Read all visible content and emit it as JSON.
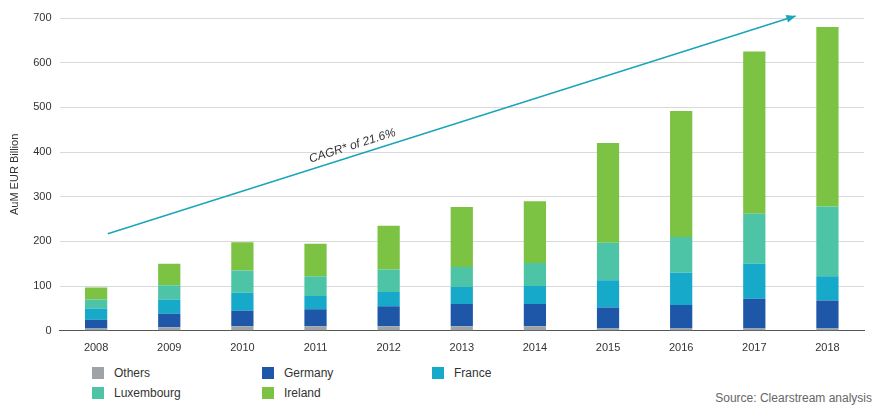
{
  "chart_data": {
    "type": "bar",
    "stacked": true,
    "grid": true,
    "legend": "bottom",
    "y_label": "AuM EUR Billion",
    "annotations": [
      "CAGR* of 21.6%"
    ],
    "source": "Source: Clearstream analysis",
    "categories": [
      "2008",
      "2009",
      "2010",
      "2011",
      "2012",
      "2013",
      "2014",
      "2015",
      "2016",
      "2017",
      "2018"
    ],
    "series": [
      {
        "name": "Others",
        "color": "#9ea3a8",
        "values": [
          5,
          8,
          10,
          10,
          10,
          10,
          10,
          5,
          5,
          5,
          5
        ]
      },
      {
        "name": "Germany",
        "color": "#1f57a8",
        "values": [
          20,
          30,
          35,
          38,
          45,
          50,
          50,
          47,
          53,
          67,
          63
        ]
      },
      {
        "name": "France",
        "color": "#17a9c9",
        "values": [
          25,
          32,
          40,
          30,
          32,
          38,
          40,
          61,
          72,
          78,
          54
        ]
      },
      {
        "name": "Luxembourg",
        "color": "#4dc4a6",
        "values": [
          20,
          32,
          50,
          44,
          50,
          45,
          52,
          84,
          80,
          112,
          156
        ]
      },
      {
        "name": "Ireland",
        "color": "#7cc243",
        "values": [
          27,
          48,
          63,
          73,
          98,
          134,
          138,
          223,
          282,
          363,
          402
        ]
      }
    ],
    "ylim": [
      0,
      700
    ],
    "yticks": [
      0,
      100,
      200,
      300,
      400,
      500,
      600,
      700
    ]
  }
}
